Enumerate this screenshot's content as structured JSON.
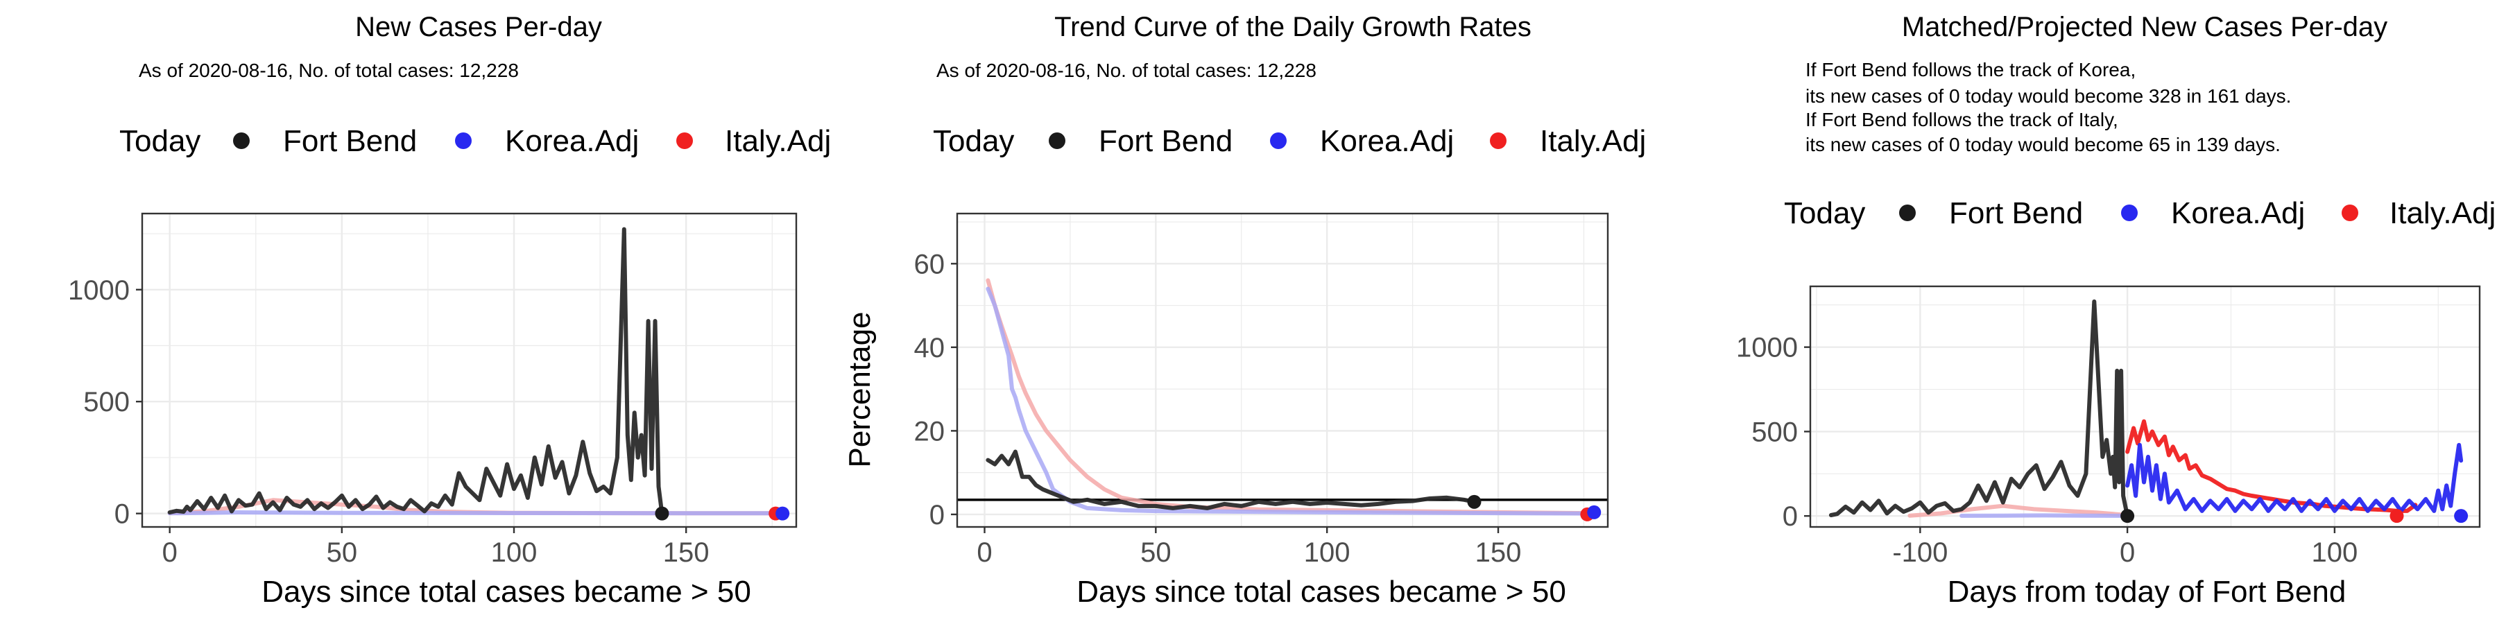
{
  "colors": {
    "today": "#1a1a1a",
    "fort_bend": "#2a2a2a",
    "korea": "#2828f0",
    "italy": "#f02020",
    "korea_faded": "#a8a8f4",
    "italy_faded": "#f4a8a8",
    "grid": "#ebebeb",
    "panel_border": "#333333",
    "tick_text": "#4d4d4d"
  },
  "chart_data": [
    {
      "type": "line",
      "title": "New Cases Per-day",
      "subtitle_lines": [
        "As of 2020-08-16, No. of total cases: 12,228"
      ],
      "legend": {
        "position": "top",
        "items": [
          "Today",
          "Fort Bend",
          "Korea.Adj",
          "Italy.Adj"
        ]
      },
      "xlabel": "Days since total cases became > 50",
      "ylabel": "",
      "xlim": [
        -8,
        182
      ],
      "ylim": [
        -60,
        1340
      ],
      "xticks": [
        0,
        50,
        100,
        150
      ],
      "yticks": [
        0,
        500,
        1000
      ],
      "grid": true,
      "series": [
        {
          "name": "Italy.Adj",
          "style": "italy_faded",
          "x": [
            0,
            10,
            20,
            30,
            40,
            50,
            60,
            70,
            80,
            90,
            100,
            120,
            150,
            176
          ],
          "y": [
            2,
            10,
            30,
            60,
            50,
            40,
            30,
            15,
            8,
            5,
            3,
            2,
            1,
            1
          ]
        },
        {
          "name": "Korea.Adj",
          "style": "korea_faded",
          "x": [
            0,
            10,
            20,
            30,
            50,
            100,
            150,
            178
          ],
          "y": [
            1,
            3,
            5,
            4,
            3,
            2,
            1,
            1
          ]
        },
        {
          "name": "Fort Bend",
          "style": "fort_bend",
          "x": [
            0,
            2,
            4,
            5,
            6,
            8,
            10,
            12,
            14,
            16,
            18,
            20,
            22,
            24,
            26,
            28,
            30,
            32,
            34,
            36,
            38,
            40,
            42,
            44,
            46,
            48,
            50,
            52,
            54,
            56,
            58,
            60,
            62,
            64,
            66,
            68,
            70,
            72,
            74,
            76,
            78,
            80,
            82,
            84,
            86,
            88,
            90,
            92,
            94,
            96,
            98,
            100,
            102,
            104,
            106,
            108,
            110,
            112,
            114,
            116,
            118,
            120,
            122,
            124,
            126,
            128,
            130,
            132,
            133,
            134,
            135,
            136,
            137,
            138,
            139,
            140,
            141,
            142,
            143
          ],
          "y": [
            5,
            12,
            8,
            30,
            15,
            55,
            20,
            70,
            25,
            80,
            10,
            60,
            35,
            40,
            90,
            20,
            50,
            15,
            70,
            40,
            30,
            60,
            20,
            45,
            25,
            50,
            80,
            30,
            60,
            20,
            40,
            75,
            25,
            50,
            30,
            20,
            60,
            35,
            10,
            45,
            30,
            80,
            40,
            180,
            120,
            90,
            60,
            200,
            140,
            80,
            220,
            110,
            170,
            70,
            250,
            130,
            300,
            160,
            230,
            90,
            170,
            320,
            180,
            100,
            120,
            90,
            250,
            1270,
            350,
            150,
            450,
            250,
            350,
            170,
            860,
            200,
            860,
            120,
            0
          ]
        }
      ],
      "today_points": [
        {
          "series": "Fort Bend",
          "x": 143,
          "y": 0
        },
        {
          "series": "Italy.Adj",
          "x": 176,
          "y": 0
        },
        {
          "series": "Korea.Adj",
          "x": 178,
          "y": 0
        }
      ]
    },
    {
      "type": "line",
      "title": "Trend Curve of the Daily Growth Rates",
      "subtitle_lines": [
        "As of 2020-08-16, No. of total cases: 12,228"
      ],
      "legend": {
        "position": "top",
        "items": [
          "Today",
          "Fort Bend",
          "Korea.Adj",
          "Italy.Adj"
        ]
      },
      "xlabel": "Days since total cases became > 50",
      "ylabel": "Percentage",
      "xlim": [
        -8,
        182
      ],
      "ylim": [
        -3,
        72
      ],
      "xticks": [
        0,
        50,
        100,
        150
      ],
      "yticks": [
        0,
        20,
        40,
        60
      ],
      "grid": true,
      "hline": 3.5,
      "series": [
        {
          "name": "Italy.Adj",
          "style": "italy_faded",
          "x": [
            1,
            2,
            3,
            5,
            8,
            10,
            12,
            15,
            18,
            20,
            25,
            30,
            35,
            40,
            50,
            60,
            80,
            100,
            120,
            150,
            176
          ],
          "y": [
            56,
            53,
            50,
            45,
            38,
            33,
            29,
            24,
            20,
            18,
            13,
            9,
            6,
            4,
            2.5,
            1.8,
            1.2,
            1,
            0.8,
            0.5,
            0.3
          ]
        },
        {
          "name": "Korea.Adj",
          "style": "korea_faded",
          "x": [
            1,
            2,
            3,
            5,
            7,
            8,
            9,
            10,
            12,
            15,
            18,
            20,
            25,
            30,
            40,
            50,
            100,
            150,
            178
          ],
          "y": [
            54,
            52,
            50,
            44,
            38,
            30,
            28,
            25,
            20,
            15,
            10,
            6,
            3,
            1.5,
            1,
            0.8,
            0.5,
            0.3,
            0.2
          ]
        },
        {
          "name": "Fort Bend",
          "style": "fort_bend",
          "x": [
            1,
            3,
            5,
            7,
            9,
            11,
            13,
            15,
            17,
            20,
            23,
            26,
            30,
            35,
            40,
            45,
            50,
            55,
            60,
            65,
            70,
            75,
            80,
            85,
            90,
            95,
            100,
            105,
            110,
            115,
            120,
            125,
            130,
            135,
            140,
            143
          ],
          "y": [
            13,
            12,
            14,
            12,
            15,
            9,
            9,
            7,
            6,
            5,
            4,
            3,
            3.5,
            2.5,
            3,
            2,
            2,
            1.5,
            2,
            1.5,
            2.5,
            2,
            3,
            2.5,
            3,
            2.5,
            2.8,
            2.5,
            2.2,
            2.5,
            3,
            3.2,
            3.8,
            4,
            3.5,
            3
          ]
        }
      ],
      "today_points": [
        {
          "series": "Fort Bend",
          "x": 143,
          "y": 3
        },
        {
          "series": "Italy.Adj",
          "x": 176,
          "y": 0
        },
        {
          "series": "Korea.Adj",
          "x": 178,
          "y": 0.5
        }
      ]
    },
    {
      "type": "line",
      "title": "Matched/Projected New Cases Per-day",
      "subtitle_lines": [
        "If Fort Bend follows the track of Korea,",
        "its new cases of 0 today would become 328 in 161 days.",
        "If Fort Bend follows the track of Italy,",
        "its new cases of 0 today would become 65 in 139 days."
      ],
      "legend": {
        "position": "top",
        "items": [
          "Today",
          "Fort Bend",
          "Korea.Adj",
          "Italy.Adj"
        ]
      },
      "xlabel": "Days from today of Fort Bend",
      "ylabel": "",
      "xlim": [
        -153,
        170
      ],
      "ylim": [
        -65,
        1360
      ],
      "xticks": [
        -100,
        0,
        100
      ],
      "yticks": [
        0,
        500,
        1000
      ],
      "grid": true,
      "series": [
        {
          "name": "Italy.Adj (matched)",
          "style": "italy_faded",
          "x": [
            -105,
            -90,
            -75,
            -60,
            -45,
            -30,
            -15,
            -5,
            0
          ],
          "y": [
            2,
            15,
            40,
            60,
            40,
            30,
            20,
            10,
            5
          ]
        },
        {
          "name": "Korea.Adj (matched)",
          "style": "korea_faded",
          "x": [
            -80,
            -60,
            -40,
            -20,
            0
          ],
          "y": [
            1,
            2,
            3,
            2,
            1
          ]
        },
        {
          "name": "Fort Bend",
          "style": "fort_bend",
          "x": [
            -143,
            -140,
            -136,
            -132,
            -128,
            -124,
            -120,
            -116,
            -112,
            -108,
            -104,
            -100,
            -96,
            -92,
            -88,
            -84,
            -80,
            -76,
            -72,
            -68,
            -64,
            -60,
            -56,
            -52,
            -48,
            -44,
            -40,
            -36,
            -32,
            -28,
            -24,
            -20,
            -16,
            -12,
            -10,
            -8,
            -7,
            -6,
            -5,
            -4,
            -3,
            -2,
            -1,
            0
          ],
          "y": [
            5,
            12,
            55,
            20,
            80,
            35,
            90,
            15,
            60,
            25,
            45,
            80,
            20,
            60,
            75,
            30,
            40,
            80,
            180,
            90,
            200,
            80,
            220,
            170,
            250,
            300,
            160,
            230,
            320,
            180,
            120,
            250,
            1270,
            350,
            450,
            250,
            350,
            170,
            860,
            200,
            860,
            120,
            60,
            0
          ]
        },
        {
          "name": "Italy.Adj",
          "style": "italy",
          "x": [
            0,
            3,
            5,
            8,
            10,
            12,
            15,
            18,
            20,
            22,
            25,
            28,
            30,
            33,
            36,
            40,
            44,
            48,
            52,
            56,
            60,
            65,
            70,
            75,
            80,
            85,
            90,
            95,
            100,
            105,
            110,
            115,
            120,
            125,
            130,
            135,
            139
          ],
          "y": [
            380,
            520,
            430,
            560,
            450,
            500,
            420,
            470,
            360,
            410,
            330,
            360,
            280,
            300,
            240,
            220,
            190,
            160,
            150,
            130,
            120,
            110,
            100,
            90,
            80,
            75,
            70,
            60,
            55,
            50,
            45,
            40,
            38,
            35,
            30,
            30,
            65
          ]
        },
        {
          "name": "Korea.Adj",
          "style": "korea",
          "x": [
            0,
            2,
            4,
            6,
            8,
            10,
            12,
            14,
            16,
            18,
            20,
            24,
            28,
            32,
            36,
            40,
            44,
            48,
            52,
            56,
            60,
            64,
            68,
            72,
            76,
            80,
            84,
            88,
            92,
            96,
            100,
            104,
            108,
            112,
            116,
            120,
            124,
            128,
            132,
            136,
            140,
            144,
            148,
            150,
            152,
            154,
            156,
            158,
            160,
            161
          ],
          "y": [
            180,
            300,
            120,
            420,
            200,
            350,
            150,
            300,
            100,
            250,
            80,
            150,
            40,
            100,
            30,
            90,
            40,
            100,
            30,
            90,
            40,
            100,
            30,
            90,
            40,
            100,
            30,
            90,
            40,
            100,
            30,
            90,
            40,
            100,
            30,
            90,
            40,
            100,
            30,
            90,
            40,
            100,
            30,
            150,
            40,
            180,
            60,
            250,
            420,
            328
          ]
        }
      ],
      "today_points": [
        {
          "series": "Fort Bend",
          "x": 0,
          "y": 0
        },
        {
          "series": "Italy.Adj",
          "x": 130,
          "y": 0
        },
        {
          "series": "Korea.Adj",
          "x": 161,
          "y": 0
        }
      ]
    }
  ]
}
